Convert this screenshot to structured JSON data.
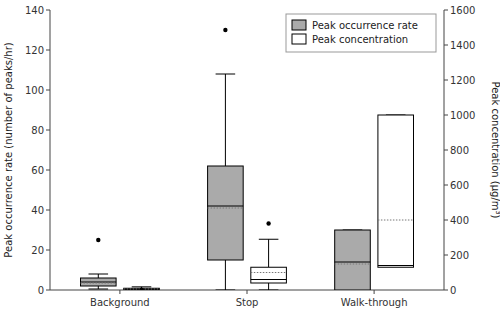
{
  "chart_data": {
    "type": "box",
    "categories": [
      "Background",
      "Stop",
      "Walk-through"
    ],
    "ylabel": "Peak occurrence rate (number of peaks/hr)",
    "y2label": "Peak concentration (μg/m³)",
    "ylim": [
      0,
      140
    ],
    "yticks": [
      0,
      20,
      40,
      60,
      80,
      100,
      120,
      140
    ],
    "y2lim": [
      0,
      1600
    ],
    "y2ticks": [
      0,
      200,
      400,
      600,
      800,
      1000,
      1200,
      1400,
      1600
    ],
    "grid": false,
    "legend": "upper right",
    "series": [
      {
        "name": "Peak occurrence rate",
        "color": "#aaaaaa",
        "axis": "y",
        "values": [
          {
            "q5": 0.5,
            "q25": 2,
            "median": 4,
            "q75": 6,
            "q95": 8,
            "mean": 3.5,
            "outlier": 25
          },
          {
            "q5": 0,
            "q25": 15,
            "median": 42,
            "q75": 62,
            "q95": 108,
            "mean": 41,
            "outlier": 130
          },
          {
            "q5": null,
            "q25": 0,
            "median": 14,
            "q75": 30,
            "q95": 30,
            "mean": 13,
            "outlier": null
          }
        ]
      },
      {
        "name": "Peak concentration",
        "color": "#ffffff",
        "axis": "y2",
        "values": [
          {
            "q5": 0,
            "q25": 3,
            "median": 5,
            "q75": 10,
            "q95": 18,
            "mean": 6,
            "outlier": 2
          },
          {
            "q5": 0,
            "q25": 40,
            "median": 60,
            "q75": 130,
            "q95": 290,
            "mean": 100,
            "outlier": 380
          },
          {
            "q5": null,
            "q25": 130,
            "median": 140,
            "q75": 1000,
            "q95": 1000,
            "mean": 400,
            "outlier": null
          }
        ]
      }
    ]
  }
}
